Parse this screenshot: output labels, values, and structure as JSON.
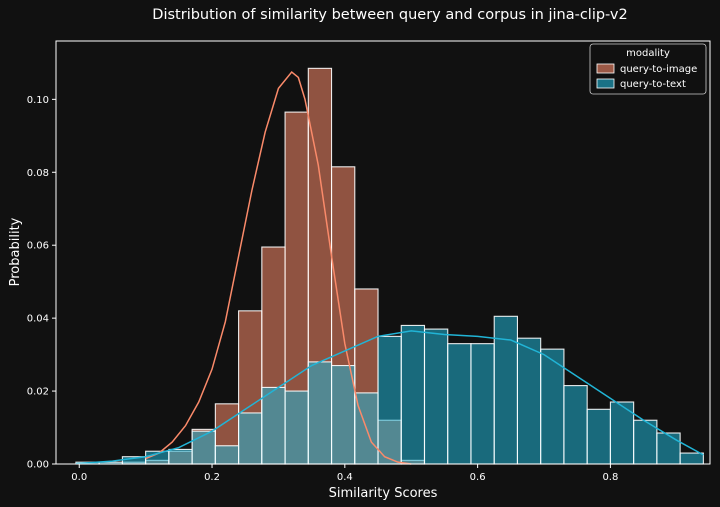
{
  "chart_data": {
    "type": "histogram",
    "title": "Distribution of similarity between query and corpus in jina-clip-v2",
    "xlabel": "Similarity Scores",
    "ylabel": "Probability",
    "xlim": [
      -0.035,
      0.95
    ],
    "ylim": [
      0,
      0.116
    ],
    "xticks": [
      0.0,
      0.2,
      0.4,
      0.6,
      0.8
    ],
    "xtick_labels": [
      "0.0",
      "0.2",
      "0.4",
      "0.6",
      "0.8"
    ],
    "yticks": [
      0.0,
      0.02,
      0.04,
      0.06,
      0.08,
      0.1
    ],
    "ytick_labels": [
      "0.00",
      "0.02",
      "0.04",
      "0.06",
      "0.08",
      "0.10"
    ],
    "grid": false,
    "legend": {
      "title": "modality",
      "placement": "top-right",
      "entries": [
        "query-to-image",
        "query-to-text"
      ]
    },
    "bin_edges": [
      -0.005,
      0.03,
      0.065,
      0.1,
      0.135,
      0.17,
      0.205,
      0.24,
      0.275,
      0.31,
      0.345,
      0.38,
      0.415,
      0.45,
      0.485,
      0.52,
      0.555,
      0.59,
      0.625,
      0.66,
      0.695,
      0.73,
      0.765,
      0.8,
      0.835,
      0.87,
      0.905,
      0.94
    ],
    "series": [
      {
        "name": "query-to-image",
        "color": "#fa8a6a",
        "values": [
          0.0,
          0.0,
          0.0005,
          0.001,
          0.0035,
          0.0095,
          0.0165,
          0.042,
          0.0595,
          0.0965,
          0.1085,
          0.0815,
          0.048,
          0.012,
          0.001,
          0.0,
          0.0,
          0.0,
          0.0,
          0.0,
          0.0,
          0.0,
          0.0,
          0.0,
          0.0,
          0.0,
          0.0
        ],
        "kde_x": [
          0.1,
          0.12,
          0.14,
          0.16,
          0.18,
          0.2,
          0.22,
          0.24,
          0.26,
          0.28,
          0.3,
          0.32,
          0.33,
          0.34,
          0.36,
          0.38,
          0.4,
          0.42,
          0.44,
          0.46,
          0.48,
          0.5
        ],
        "kde_y": [
          0.0015,
          0.003,
          0.006,
          0.0105,
          0.017,
          0.026,
          0.039,
          0.057,
          0.075,
          0.091,
          0.103,
          0.1075,
          0.106,
          0.1,
          0.082,
          0.057,
          0.033,
          0.016,
          0.006,
          0.002,
          0.0005,
          0.0
        ]
      },
      {
        "name": "query-to-text",
        "color": "#21b4d6",
        "values": [
          0.0005,
          0.0005,
          0.002,
          0.0035,
          0.004,
          0.009,
          0.005,
          0.014,
          0.021,
          0.02,
          0.028,
          0.027,
          0.0195,
          0.035,
          0.038,
          0.037,
          0.033,
          0.033,
          0.0405,
          0.0345,
          0.0315,
          0.0215,
          0.015,
          0.017,
          0.012,
          0.0085,
          0.003
        ],
        "kde_x": [
          -0.005,
          0.05,
          0.1,
          0.15,
          0.2,
          0.25,
          0.3,
          0.35,
          0.4,
          0.45,
          0.5,
          0.55,
          0.6,
          0.65,
          0.7,
          0.75,
          0.8,
          0.85,
          0.9,
          0.94
        ],
        "kde_y": [
          0.0001,
          0.0008,
          0.002,
          0.0045,
          0.009,
          0.015,
          0.021,
          0.027,
          0.031,
          0.035,
          0.0365,
          0.0355,
          0.035,
          0.034,
          0.03,
          0.024,
          0.018,
          0.012,
          0.0065,
          0.0025
        ]
      }
    ]
  }
}
